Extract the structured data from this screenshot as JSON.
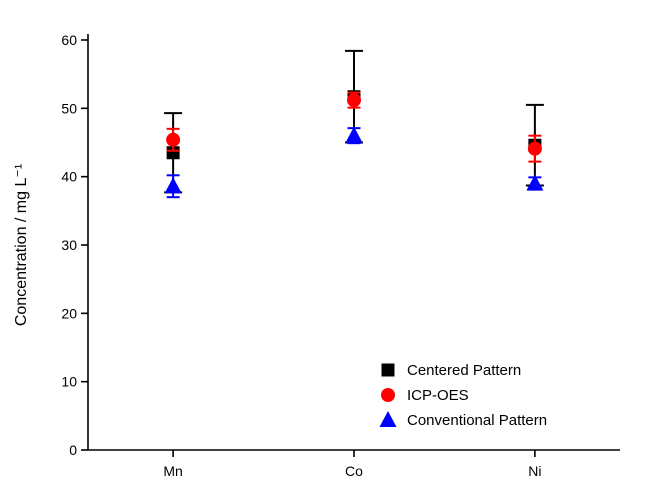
{
  "chart_data": {
    "type": "scatter",
    "title": "",
    "xlabel": "",
    "ylabel": "Concentration / mg L⁻¹",
    "categories": [
      "Mn",
      "Co",
      "Ni"
    ],
    "ylim": [
      0,
      60
    ],
    "yticks": [
      0,
      10,
      20,
      30,
      40,
      50,
      60
    ],
    "grid": false,
    "legend_position": "inside-bottom-right",
    "series": [
      {
        "name": "Centered Pattern",
        "marker": "square",
        "color": "#000000",
        "values": [
          43.5,
          51.7,
          44.6
        ],
        "errors": [
          5.8,
          6.7,
          5.9
        ]
      },
      {
        "name": "ICP-OES",
        "marker": "circle",
        "color": "#ff0000",
        "values": [
          45.4,
          51.2,
          44.1
        ],
        "errors": [
          1.6,
          1.1,
          1.9
        ]
      },
      {
        "name": "Conventional Pattern",
        "marker": "triangle",
        "color": "#0000ff",
        "values": [
          38.6,
          46.0,
          39.0
        ],
        "errors": [
          1.6,
          1.1,
          0.9
        ]
      }
    ]
  }
}
